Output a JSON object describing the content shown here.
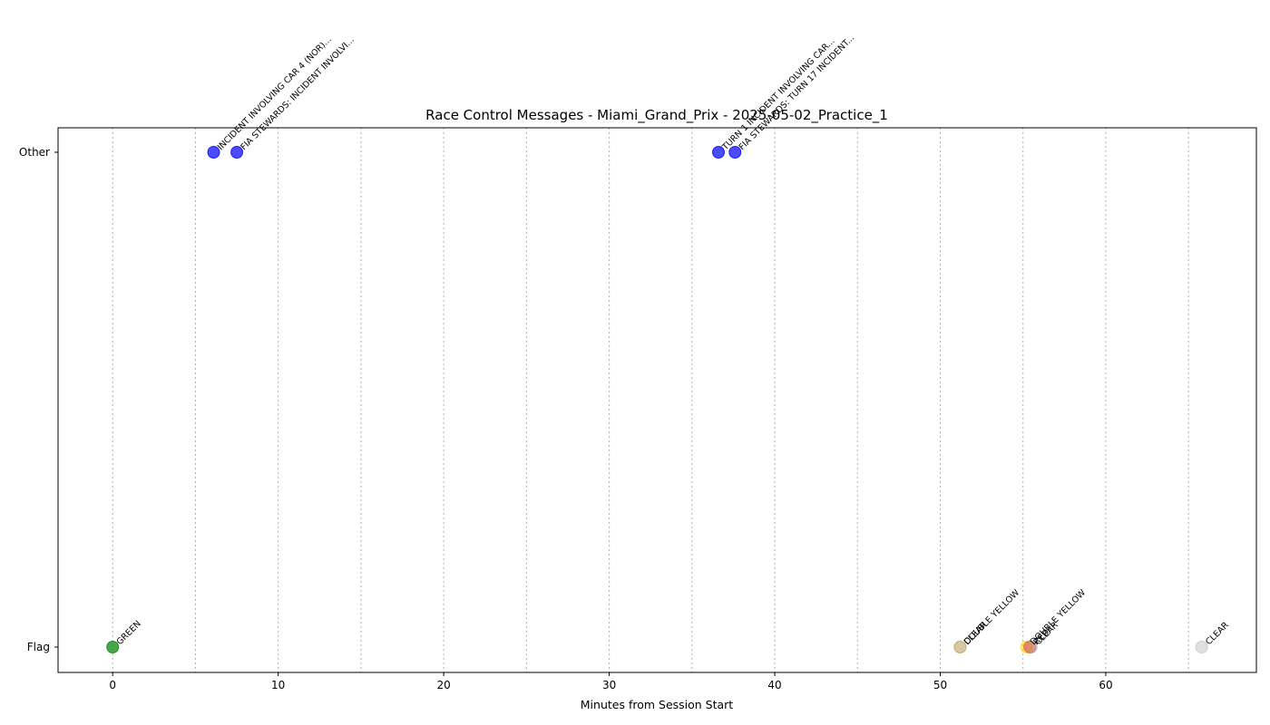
{
  "chart_data": {
    "type": "scatter",
    "title": "Race Control Messages - Miami_Grand_Prix - 2025-05-02_Practice_1",
    "xlabel": "Minutes from Session Start",
    "ylabel": "",
    "xlim": [
      -3.3,
      69.1
    ],
    "x_ticks": [
      0,
      10,
      20,
      30,
      40,
      50,
      60
    ],
    "x_tick_labels": [
      "0",
      "10",
      "20",
      "30",
      "40",
      "50",
      "60"
    ],
    "x_gridlines": [
      0,
      5,
      10,
      15,
      20,
      25,
      30,
      35,
      40,
      45,
      50,
      55,
      60,
      65
    ],
    "grid": "vertical dotted",
    "categories": [
      "Flag",
      "Other"
    ],
    "points": [
      {
        "x": 0.0,
        "category": "Flag",
        "label": "GREEN",
        "color": "#008000",
        "opacity": 0.7
      },
      {
        "x": 6.1,
        "category": "Other",
        "label": "INCIDENT INVOLVING CAR 4 (NOR)...",
        "color": "#0000ff",
        "opacity": 0.7
      },
      {
        "x": 7.5,
        "category": "Other",
        "label": "FIA STEWARDS: INCIDENT INVOLVI...",
        "color": "#0000ff",
        "opacity": 0.7
      },
      {
        "x": 36.6,
        "category": "Other",
        "label": "TURN 1 INCIDENT INVOLVING CAR...",
        "color": "#0000ff",
        "opacity": 0.7
      },
      {
        "x": 37.6,
        "category": "Other",
        "label": "FIA STEWARDS: TURN 17 INCIDENT...",
        "color": "#0000ff",
        "opacity": 0.7
      },
      {
        "x": 51.2,
        "category": "Flag",
        "label": "DOUBLE YELLOW",
        "color": "#ffa500",
        "opacity": 0.3
      },
      {
        "x": 51.2,
        "category": "Flag",
        "label": "CLEAR",
        "color": "#808080",
        "opacity": 0.3
      },
      {
        "x": 55.2,
        "category": "Flag",
        "label": "DOUBLE YELLOW",
        "color": "#ffd700",
        "opacity": 0.5
      },
      {
        "x": 55.4,
        "category": "Flag",
        "label": "RED",
        "color": "#ff0000",
        "opacity": 0.35
      },
      {
        "x": 55.5,
        "category": "Flag",
        "label": "CLEAR",
        "color": "#808080",
        "opacity": 0.3
      },
      {
        "x": 65.8,
        "category": "Flag",
        "label": "CLEAR",
        "color": "#b0b0b0",
        "opacity": 0.4
      }
    ]
  }
}
